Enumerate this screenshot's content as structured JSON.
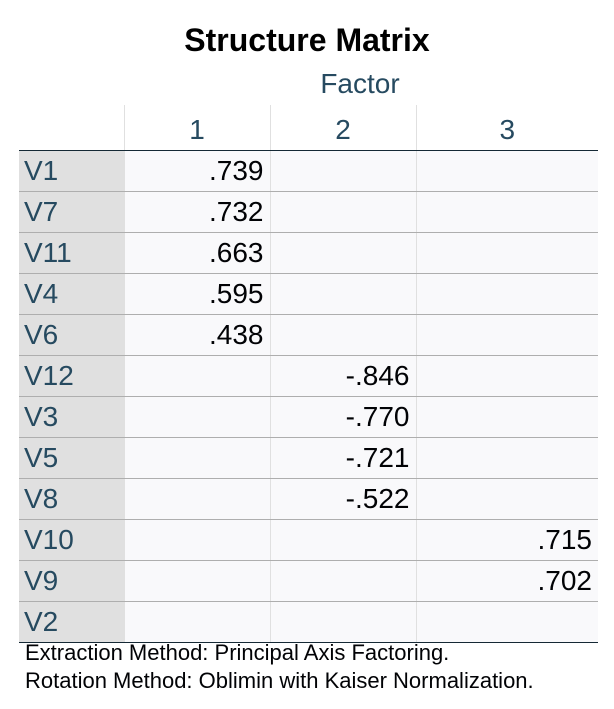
{
  "title": "Structure Matrix",
  "factor_label": "Factor",
  "columns": [
    "1",
    "2",
    "3"
  ],
  "rows": [
    {
      "label": "V1",
      "values": [
        ".739",
        "",
        ""
      ]
    },
    {
      "label": "V7",
      "values": [
        ".732",
        "",
        ""
      ]
    },
    {
      "label": "V11",
      "values": [
        ".663",
        "",
        ""
      ]
    },
    {
      "label": "V4",
      "values": [
        ".595",
        "",
        ""
      ]
    },
    {
      "label": "V6",
      "values": [
        ".438",
        "",
        ""
      ]
    },
    {
      "label": "V12",
      "values": [
        "",
        "-.846",
        ""
      ]
    },
    {
      "label": "V3",
      "values": [
        "",
        "-.770",
        ""
      ]
    },
    {
      "label": "V5",
      "values": [
        "",
        "-.721",
        ""
      ]
    },
    {
      "label": "V8",
      "values": [
        "",
        "-.522",
        ""
      ]
    },
    {
      "label": "V10",
      "values": [
        "",
        "",
        ".715"
      ]
    },
    {
      "label": "V9",
      "values": [
        "",
        "",
        ".702"
      ]
    },
    {
      "label": "V2",
      "values": [
        "",
        "",
        ""
      ]
    }
  ],
  "footnotes": [
    "Extraction Method: Principal Axis Factoring.",
    "Rotation Method: Oblimin with Kaiser Normalization."
  ],
  "colors": {
    "header_text": "#264a60",
    "row_label_bg": "#e0e0e0",
    "cell_bg": "#f9f9fb"
  }
}
